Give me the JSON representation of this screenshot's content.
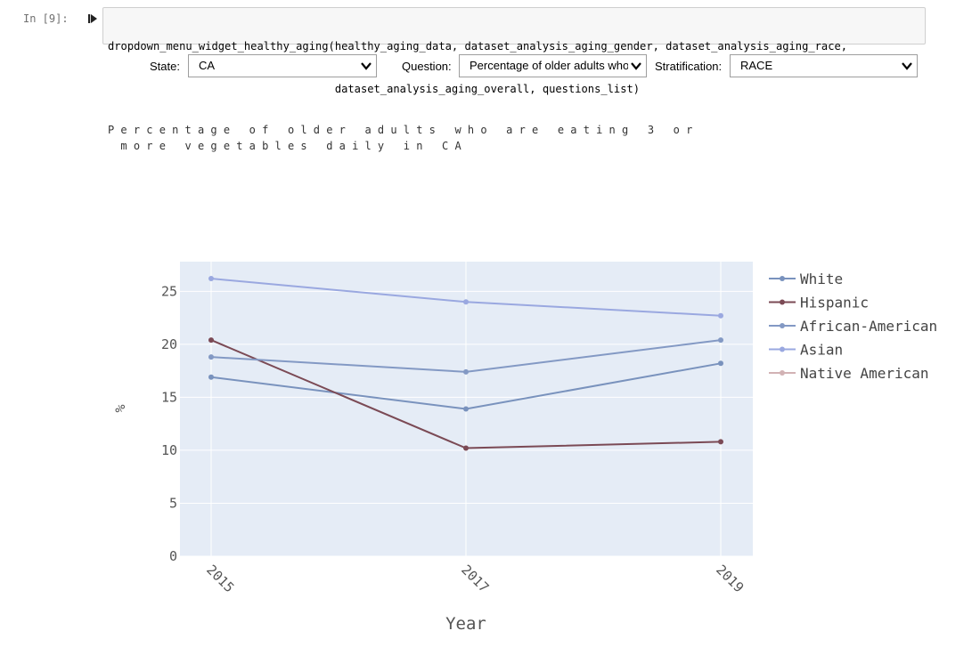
{
  "cell": {
    "prompt": "In [9]:",
    "code_line1": "dropdown_menu_widget_healthy_aging(healthy_aging_data, dataset_analysis_aging_gender, dataset_analysis_aging_race,",
    "code_line2": "                                   dataset_analysis_aging_overall, questions_list)"
  },
  "widgets": {
    "state_label": "State:",
    "state_value": "CA",
    "question_label": "Question:",
    "question_value": "Percentage of older adults who are eating 3 or more vegetables daily",
    "stratification_label": "Stratification:",
    "stratification_value": "RACE"
  },
  "icons": {
    "run": "run-cell-icon",
    "dropdown": "chevron-down-icon"
  },
  "chart_data": {
    "type": "line",
    "title_line1": "Percentage of older adults who are eating 3 or",
    "title_line2": " more vegetables daily in CA",
    "xlabel": "Year",
    "ylabel": "%",
    "x": [
      "2015",
      "2017",
      "2019"
    ],
    "ylim": [
      0,
      27.8
    ],
    "yticks": [
      0,
      5,
      10,
      15,
      20,
      25
    ],
    "grid": true,
    "legend_position": "right",
    "plot_bg": "#e5ecf6",
    "series": [
      {
        "name": "White",
        "values": [
          16.9,
          13.9,
          18.2
        ],
        "color": "#7992bd"
      },
      {
        "name": "Hispanic",
        "values": [
          20.4,
          10.2,
          10.8
        ],
        "color": "#7b4a55"
      },
      {
        "name": "African-American",
        "values": [
          18.8,
          17.4,
          20.4
        ],
        "color": "#8399c4"
      },
      {
        "name": "Asian",
        "values": [
          26.2,
          24.0,
          22.7
        ],
        "color": "#9aa8e0"
      },
      {
        "name": "Native American",
        "values": [
          null,
          null,
          null
        ],
        "color": "#d2b2b4"
      }
    ]
  }
}
